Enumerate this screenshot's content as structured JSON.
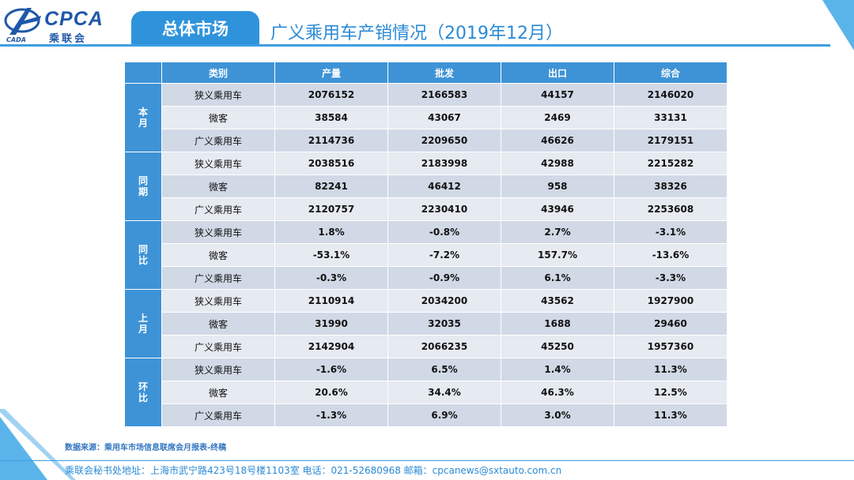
{
  "logo": {
    "text": "CPCA",
    "cn": "乘联会",
    "sub": "CADA"
  },
  "tab_label": "总体市场",
  "title": "广义乘用车产销情况（2019年12月）",
  "table": {
    "headers": [
      "类别",
      "产量",
      "批发",
      "出口",
      "综合"
    ],
    "groups": [
      {
        "label": "本月",
        "rows": [
          {
            "category": "狭义乘用车",
            "values": [
              "2076152",
              "2166583",
              "44157",
              "2146020"
            ]
          },
          {
            "category": "微客",
            "values": [
              "38584",
              "43067",
              "2469",
              "33131"
            ]
          },
          {
            "category": "广义乘用车",
            "values": [
              "2114736",
              "2209650",
              "46626",
              "2179151"
            ]
          }
        ]
      },
      {
        "label": "同期",
        "rows": [
          {
            "category": "狭义乘用车",
            "values": [
              "2038516",
              "2183998",
              "42988",
              "2215282"
            ]
          },
          {
            "category": "微客",
            "values": [
              "82241",
              "46412",
              "958",
              "38326"
            ]
          },
          {
            "category": "广义乘用车",
            "values": [
              "2120757",
              "2230410",
              "43946",
              "2253608"
            ]
          }
        ]
      },
      {
        "label": "同比",
        "rows": [
          {
            "category": "狭义乘用车",
            "values": [
              "1.8%",
              "-0.8%",
              "2.7%",
              "-3.1%"
            ]
          },
          {
            "category": "微客",
            "values": [
              "-53.1%",
              "-7.2%",
              "157.7%",
              "-13.6%"
            ]
          },
          {
            "category": "广义乘用车",
            "values": [
              "-0.3%",
              "-0.9%",
              "6.1%",
              "-3.3%"
            ]
          }
        ]
      },
      {
        "label": "上月",
        "rows": [
          {
            "category": "狭义乘用车",
            "values": [
              "2110914",
              "2034200",
              "43562",
              "1927900"
            ]
          },
          {
            "category": "微客",
            "values": [
              "31990",
              "32035",
              "1688",
              "29460"
            ]
          },
          {
            "category": "广义乘用车",
            "values": [
              "2142904",
              "2066235",
              "45250",
              "1957360"
            ]
          }
        ]
      },
      {
        "label": "环比",
        "rows": [
          {
            "category": "狭义乘用车",
            "values": [
              "-1.6%",
              "6.5%",
              "1.4%",
              "11.3%"
            ]
          },
          {
            "category": "微客",
            "values": [
              "20.6%",
              "34.4%",
              "46.3%",
              "12.5%"
            ]
          },
          {
            "category": "广义乘用车",
            "values": [
              "-1.3%",
              "6.9%",
              "3.0%",
              "11.3%"
            ]
          }
        ]
      }
    ]
  },
  "source": "数据来源：乘用车市场信息联席会月报表-终稿",
  "footer": "乘联会秘书处地址：上海市武宁路423号18号楼1103室  电话：021-52680968  邮箱：cpcanews@sxtauto.com.cn",
  "colors": {
    "accent": "#2f93dc",
    "header_blue": "#3e93d6",
    "row_light": "#e6eaf1",
    "row_dark": "#d1d9e6"
  }
}
